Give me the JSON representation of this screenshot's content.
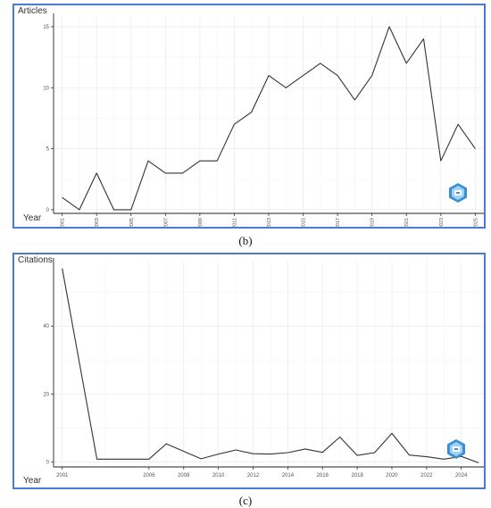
{
  "captions": {
    "b": "(b)",
    "c": "(c)"
  },
  "colors": {
    "frame": "#4a7bd0",
    "line": "#333333",
    "grid": "#ebebeb",
    "logo": "#3a8fd6"
  },
  "badge_icon": "journal-logo-icon",
  "chart_data": [
    {
      "type": "line",
      "panel": "b",
      "title": "",
      "ylabel": "Articles",
      "xlabel": "Year",
      "x": [
        2001,
        2002,
        2003,
        2004,
        2005,
        2006,
        2007,
        2008,
        2009,
        2010,
        2011,
        2012,
        2013,
        2014,
        2015,
        2016,
        2017,
        2018,
        2019,
        2020,
        2021,
        2022,
        2023,
        2024,
        2025
      ],
      "values": [
        1,
        0,
        3,
        0,
        0,
        4,
        3,
        3,
        4,
        4,
        7,
        8,
        11,
        10,
        11,
        12,
        11,
        9,
        11,
        15,
        12,
        14,
        4,
        7,
        5
      ],
      "xticks": [
        2001,
        2003,
        2005,
        2007,
        2009,
        2011,
        2013,
        2015,
        2017,
        2019,
        2021,
        2023,
        2025
      ],
      "yticks": [
        0,
        5,
        10,
        15
      ],
      "xlim": [
        2000.5,
        2025.5
      ],
      "ylim": [
        -0.3,
        15.8
      ],
      "xtick_rotation": "vertical",
      "grid": true
    },
    {
      "type": "line",
      "panel": "c",
      "title": "",
      "ylabel": "Citations",
      "xlabel": "Year",
      "x": [
        2001,
        2003,
        2006,
        2007,
        2009,
        2010,
        2011,
        2012,
        2013,
        2014,
        2015,
        2016,
        2017,
        2018,
        2019,
        2020,
        2021,
        2022,
        2023,
        2024,
        2025
      ],
      "values": [
        57,
        0.8,
        0.8,
        5.3,
        0.9,
        2.3,
        3.5,
        2.4,
        2.3,
        2.7,
        3.8,
        2.8,
        7.3,
        1.9,
        2.7,
        8.4,
        2.0,
        1.5,
        0.8,
        1.6,
        -0.3
      ],
      "xticks": [
        2001,
        2006,
        2008,
        2010,
        2012,
        2014,
        2016,
        2018,
        2020,
        2022,
        2024
      ],
      "yticks": [
        0,
        20,
        40
      ],
      "xlim": [
        2000.5,
        2025.3
      ],
      "ylim": [
        -1.5,
        59
      ],
      "xtick_rotation": "horizontal",
      "grid": true
    }
  ]
}
